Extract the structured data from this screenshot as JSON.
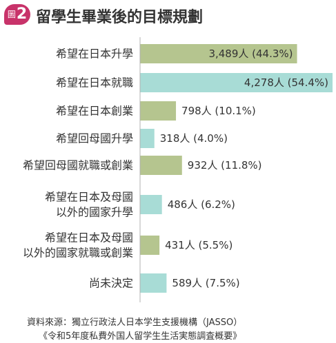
{
  "header": {
    "badge_kanji": "圖",
    "badge_number": "2",
    "title": "留學生畢業後的目標規劃"
  },
  "colors": {
    "green_bar": "#b5c58f",
    "teal_bar": "#a8dcd6",
    "badge": "#c8336a",
    "text": "#333333",
    "axis": "#b0b0b0"
  },
  "chart_data": {
    "type": "bar",
    "orientation": "horizontal",
    "title": "留學生畢業後的目標規劃",
    "categories": [
      "希望在日本升學",
      "希望在日本就職",
      "希望在日本創業",
      "希望回母國升學",
      "希望回母國就職或創業",
      "希望在日本及母國以外的國家升學",
      "希望在日本及母國以外的國家就職或創業",
      "尚未決定"
    ],
    "category_lines": [
      [
        "希望在日本升學"
      ],
      [
        "希望在日本就職"
      ],
      [
        "希望在日本創業"
      ],
      [
        "希望回母國升學"
      ],
      [
        "希望回母國就職或創業"
      ],
      [
        "希望在日本及母國",
        "以外的國家升學"
      ],
      [
        "希望在日本及母國",
        "以外的國家就職或創業"
      ],
      [
        "尚未決定"
      ]
    ],
    "values": [
      3489,
      4278,
      798,
      318,
      932,
      486,
      431,
      589
    ],
    "percentages": [
      44.3,
      54.4,
      10.1,
      4.0,
      11.8,
      6.2,
      5.5,
      7.5
    ],
    "labels": [
      "3,489人 (44.3%)",
      "4,278人 (54.4%)",
      "798人 (10.1%)",
      "318人 (4.0%)",
      "932人 (11.8%)",
      "486人 (6.2%)",
      "431人 (5.5%)",
      "589人 (7.5%)"
    ],
    "bar_colors": [
      "#b5c58f",
      "#a8dcd6",
      "#b5c58f",
      "#a8dcd6",
      "#b5c58f",
      "#a8dcd6",
      "#b5c58f",
      "#a8dcd6"
    ],
    "label_position": [
      "inside",
      "inside",
      "outside",
      "outside",
      "outside",
      "outside",
      "outside",
      "outside"
    ],
    "xlim": [
      0,
      4278
    ],
    "grid": false,
    "legend": "none"
  },
  "source": {
    "line1": "資料來源：獨立行政法人日本学生支援機構（JASSO）",
    "line2": "《令和5年度私費外国人留学生生活実態調査概要》"
  }
}
